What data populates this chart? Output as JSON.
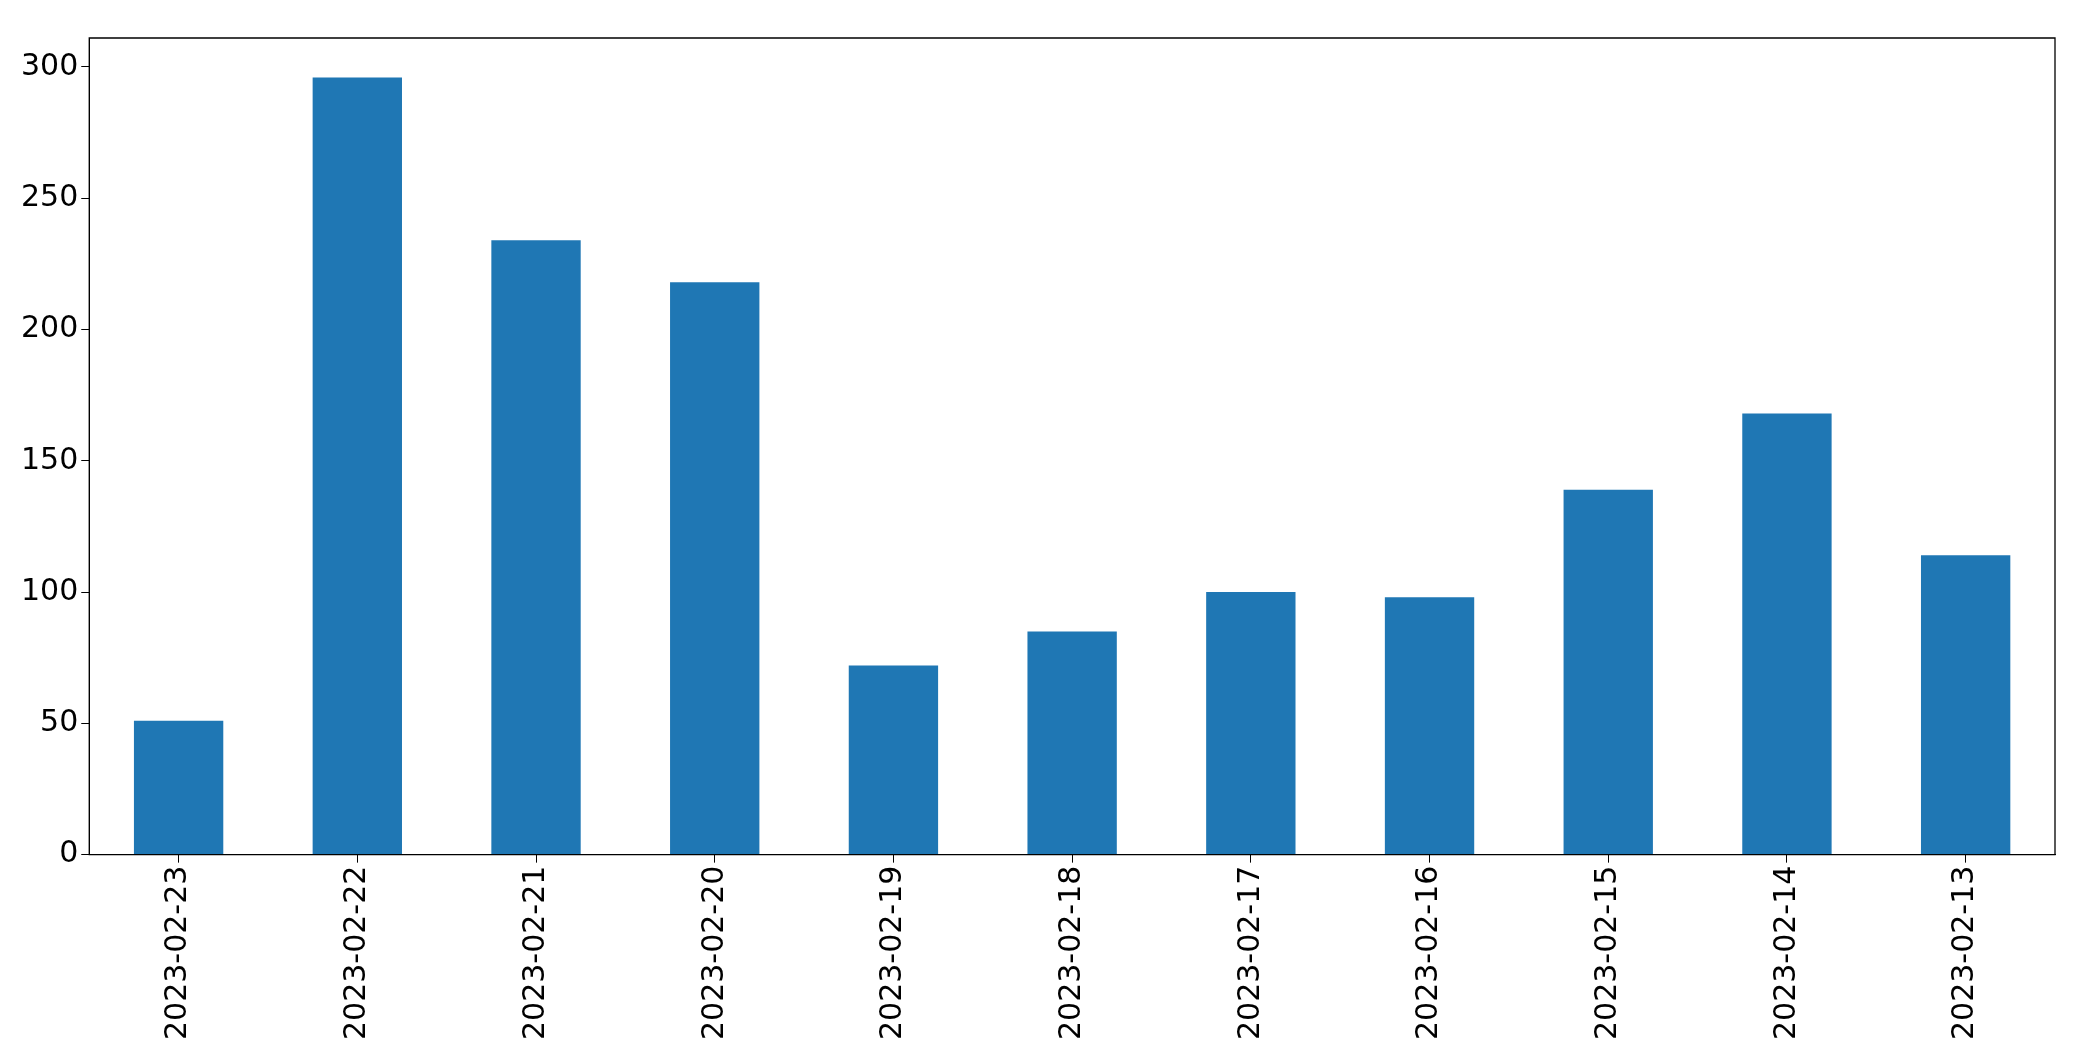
{
  "chart_data": {
    "type": "bar",
    "categories": [
      "2023-02-23",
      "2023-02-22",
      "2023-02-21",
      "2023-02-20",
      "2023-02-19",
      "2023-02-18",
      "2023-02-17",
      "2023-02-16",
      "2023-02-15",
      "2023-02-14",
      "2023-02-13"
    ],
    "values": [
      51,
      296,
      234,
      218,
      72,
      85,
      100,
      98,
      139,
      168,
      114
    ],
    "color": "#1f77b4",
    "ylim": [
      0,
      311
    ],
    "yticks": [
      0,
      50,
      100,
      150,
      200,
      250,
      300
    ],
    "grid": false,
    "legend": false
  }
}
